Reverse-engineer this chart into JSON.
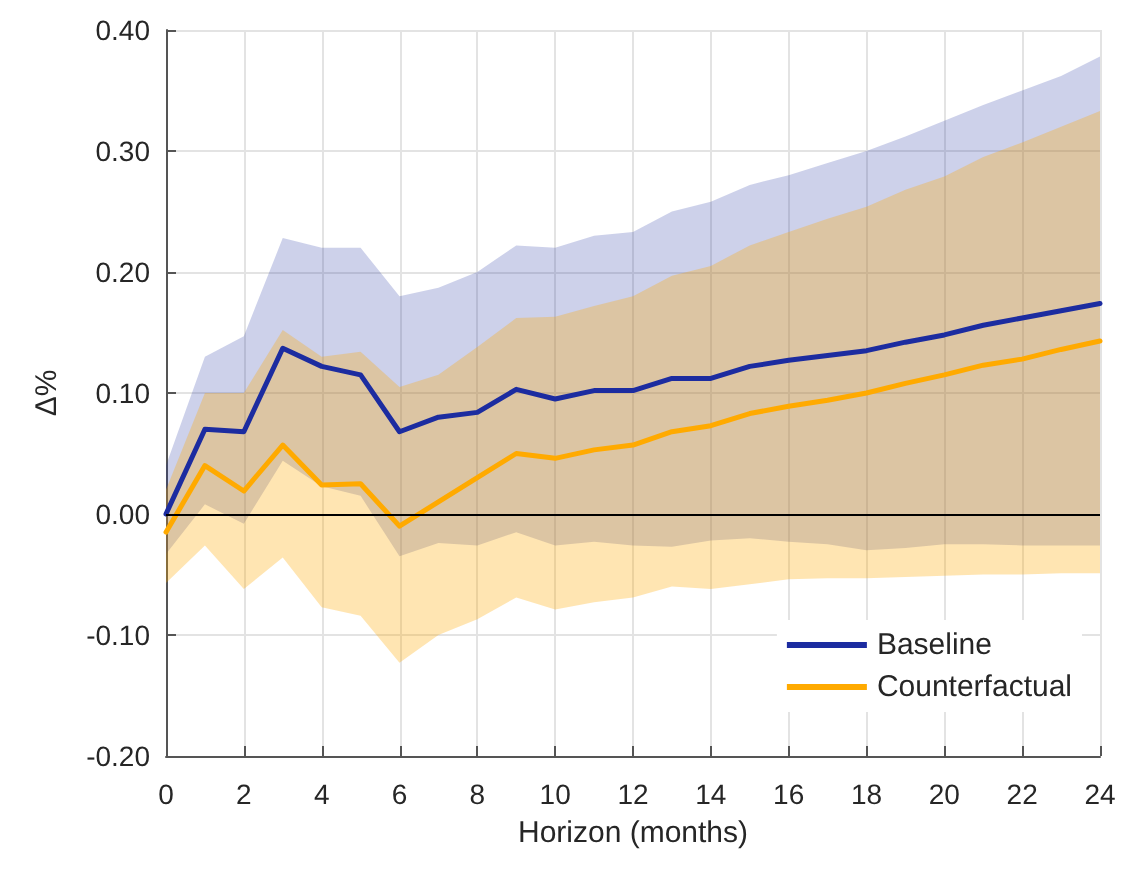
{
  "chart_data": {
    "type": "line",
    "xlabel": "Horizon (months)",
    "ylabel": "Δ%",
    "x": [
      0,
      1,
      2,
      3,
      4,
      5,
      6,
      7,
      8,
      9,
      10,
      11,
      12,
      13,
      14,
      15,
      16,
      17,
      18,
      19,
      20,
      21,
      22,
      23,
      24
    ],
    "series": [
      {
        "name": "Baseline",
        "color": "#1c2ca0",
        "values": [
          0.0,
          0.07,
          0.068,
          0.137,
          0.122,
          0.115,
          0.068,
          0.08,
          0.084,
          0.103,
          0.095,
          0.102,
          0.102,
          0.112,
          0.112,
          0.122,
          0.127,
          0.131,
          0.135,
          0.142,
          0.148,
          0.156,
          0.162,
          0.168,
          0.174
        ],
        "lower": [
          -0.033,
          0.008,
          -0.008,
          0.044,
          0.023,
          0.015,
          -0.035,
          -0.024,
          -0.026,
          -0.015,
          -0.026,
          -0.023,
          -0.026,
          -0.027,
          -0.022,
          -0.02,
          -0.023,
          -0.025,
          -0.03,
          -0.028,
          -0.025,
          -0.025,
          -0.026,
          -0.026,
          -0.026
        ],
        "upper": [
          0.04,
          0.13,
          0.147,
          0.228,
          0.22,
          0.22,
          0.18,
          0.187,
          0.2,
          0.222,
          0.22,
          0.23,
          0.233,
          0.25,
          0.258,
          0.272,
          0.28,
          0.29,
          0.3,
          0.312,
          0.325,
          0.338,
          0.35,
          0.362,
          0.378
        ]
      },
      {
        "name": "Counterfactual",
        "color": "#ffaa00",
        "values": [
          -0.015,
          0.04,
          0.019,
          0.057,
          0.024,
          0.025,
          -0.01,
          0.01,
          0.03,
          0.05,
          0.046,
          0.053,
          0.057,
          0.068,
          0.073,
          0.083,
          0.089,
          0.094,
          0.1,
          0.108,
          0.115,
          0.123,
          0.128,
          0.136,
          0.143
        ],
        "lower": [
          -0.057,
          -0.026,
          -0.062,
          -0.036,
          -0.077,
          -0.084,
          -0.123,
          -0.1,
          -0.087,
          -0.069,
          -0.079,
          -0.073,
          -0.069,
          -0.06,
          -0.062,
          -0.058,
          -0.054,
          -0.053,
          -0.053,
          -0.052,
          -0.051,
          -0.05,
          -0.05,
          -0.049,
          -0.049
        ],
        "upper": [
          0.02,
          0.1,
          0.1,
          0.152,
          0.13,
          0.134,
          0.105,
          0.115,
          0.138,
          0.162,
          0.163,
          0.172,
          0.18,
          0.197,
          0.205,
          0.222,
          0.233,
          0.244,
          0.254,
          0.268,
          0.279,
          0.295,
          0.307,
          0.32,
          0.333
        ]
      }
    ],
    "xlim": [
      0,
      24
    ],
    "xticks": [
      0,
      2,
      4,
      6,
      8,
      10,
      12,
      14,
      16,
      18,
      20,
      22,
      24
    ],
    "ylim": [
      -0.2,
      0.4
    ],
    "yticks": [
      {
        "value": -0.2,
        "label": "-0.20"
      },
      {
        "value": -0.1,
        "label": "-0.10"
      },
      {
        "value": 0,
        "label": "0.00"
      },
      {
        "value": 0.1,
        "label": "0.10"
      },
      {
        "value": 0.2,
        "label": "0.20"
      },
      {
        "value": 0.3,
        "label": "0.30"
      },
      {
        "value": 0.4,
        "label": "0.40"
      }
    ],
    "ref_lines": [
      {
        "axis": "y",
        "value": 0,
        "color": "#000000"
      }
    ],
    "grid": true,
    "legend": "bottom right",
    "marker": "none",
    "line_style": "solid"
  }
}
